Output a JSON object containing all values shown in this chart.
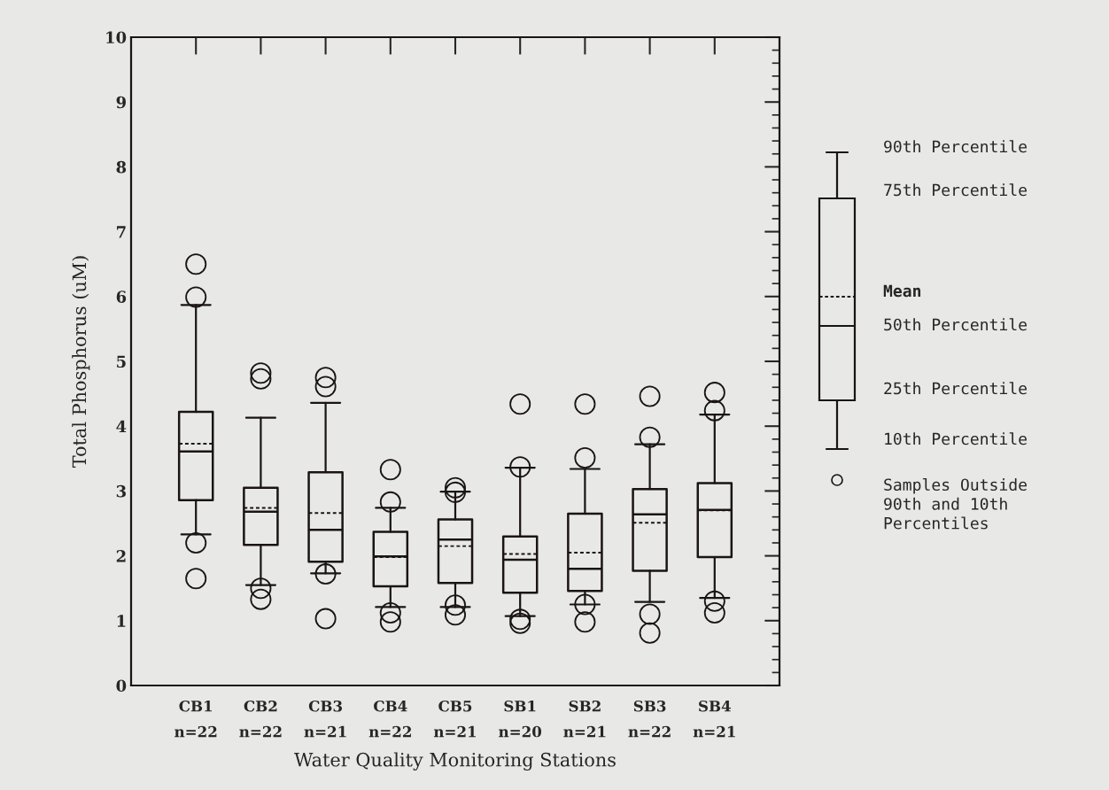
{
  "chart_data": {
    "type": "box",
    "xlabel": "Water Quality Monitoring Stations",
    "ylabel": "Total Phosphorus (uM)",
    "categories": [
      "CB1\nn=22",
      "CB2\nn=22",
      "CB3\nn=21",
      "CB4\nn=22",
      "CB5\nn=21",
      "SB1\nn=20",
      "SB2\nn=21",
      "SB3\nn=22",
      "SB4\nn=21"
    ],
    "boxes": [
      {
        "low": 2.33,
        "q1": 2.86,
        "median": 3.61,
        "q3": 4.22,
        "high": 5.87,
        "mean": 3.73,
        "outliers": [
          6.5,
          5.99,
          2.2,
          1.65
        ]
      },
      {
        "low": 1.55,
        "q1": 2.17,
        "median": 2.68,
        "q3": 3.05,
        "high": 4.13,
        "mean": 2.74,
        "outliers": [
          4.82,
          4.73,
          1.5,
          1.33
        ]
      },
      {
        "low": 1.73,
        "q1": 1.91,
        "median": 2.4,
        "q3": 3.29,
        "high": 4.36,
        "mean": 2.66,
        "outliers": [
          4.75,
          4.61,
          1.72,
          1.03
        ]
      },
      {
        "low": 1.21,
        "q1": 1.53,
        "median": 1.99,
        "q3": 2.37,
        "high": 2.74,
        "mean": 1.98,
        "outliers": [
          3.33,
          2.83,
          1.12,
          0.98
        ]
      },
      {
        "low": 1.21,
        "q1": 1.58,
        "median": 2.25,
        "q3": 2.56,
        "high": 2.99,
        "mean": 2.15,
        "outliers": [
          3.05,
          2.98,
          1.24,
          1.09
        ]
      },
      {
        "low": 1.07,
        "q1": 1.43,
        "median": 1.94,
        "q3": 2.3,
        "high": 3.36,
        "mean": 2.03,
        "outliers": [
          4.34,
          3.37,
          1.02,
          0.96
        ]
      },
      {
        "low": 1.25,
        "q1": 1.46,
        "median": 1.8,
        "q3": 2.65,
        "high": 3.34,
        "mean": 2.05,
        "outliers": [
          4.34,
          3.51,
          1.25,
          0.98
        ]
      },
      {
        "low": 1.29,
        "q1": 1.77,
        "median": 2.64,
        "q3": 3.03,
        "high": 3.72,
        "mean": 2.51,
        "outliers": [
          4.46,
          3.83,
          1.1,
          0.81
        ]
      },
      {
        "low": 1.35,
        "q1": 1.98,
        "median": 2.71,
        "q3": 3.12,
        "high": 4.18,
        "mean": 2.7,
        "outliers": [
          4.52,
          4.24,
          1.3,
          1.12
        ]
      }
    ],
    "ylim": [
      0,
      10
    ],
    "yticks": [
      0,
      1,
      2,
      3,
      4,
      5,
      6,
      7,
      8,
      9,
      10
    ],
    "grid": false,
    "annotations": [
      "90th Percentile",
      "75th Percentile",
      "Mean",
      "50th Percentile",
      "25th Percentile",
      "10th Percentile",
      "Samples Outside\n90th and 10th\nPercentiles"
    ]
  }
}
